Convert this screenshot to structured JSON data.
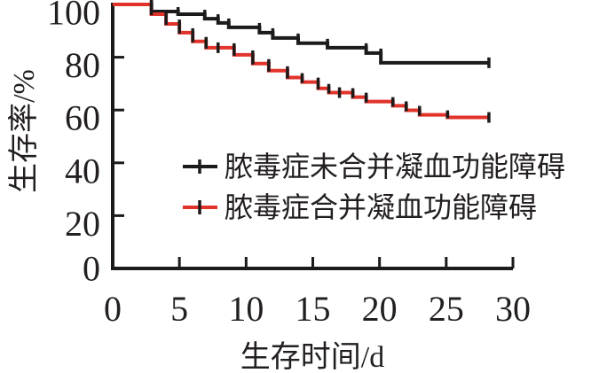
{
  "figure": {
    "background": "#ffffff",
    "text_color": "#231f20",
    "axis_color": "#1c1a1a"
  },
  "chart_data": {
    "type": "line",
    "subtype": "kaplan-meier-step-survival",
    "title": "",
    "xlabel": "生存时间/d",
    "ylabel": "生存率/%",
    "xlim": [
      0,
      30
    ],
    "ylim": [
      0,
      100
    ],
    "x_ticks": [
      0,
      5,
      10,
      15,
      20,
      25,
      30
    ],
    "y_ticks": [
      0,
      20,
      40,
      60,
      80,
      100
    ],
    "grid": false,
    "legend_position": "inside-center-left",
    "series": [
      {
        "name": "脓毒症未合并凝血功能障碍",
        "color": "#1c1a1a",
        "steps_day_pct": [
          [
            0,
            100
          ],
          [
            2.9,
            97.3
          ],
          [
            4.9,
            96.3
          ],
          [
            6.9,
            94.6
          ],
          [
            7.9,
            93.0
          ],
          [
            8.7,
            91.3
          ],
          [
            11.0,
            89.3
          ],
          [
            12.0,
            87.3
          ],
          [
            13.9,
            85.3
          ],
          [
            16.1,
            83.6
          ],
          [
            19.0,
            81.6
          ],
          [
            20.1,
            77.9
          ],
          [
            28.2,
            77.9
          ]
        ],
        "censor_days": [
          28.2
        ]
      },
      {
        "name": "脓毒症合并凝血功能障碍",
        "color": "#e2332b",
        "steps_day_pct": [
          [
            0,
            100
          ],
          [
            2.9,
            96.3
          ],
          [
            4.0,
            92.6
          ],
          [
            5.0,
            89.3
          ],
          [
            6.0,
            86.0
          ],
          [
            7.0,
            83.6
          ],
          [
            9.1,
            80.9
          ],
          [
            10.5,
            77.6
          ],
          [
            11.7,
            74.9
          ],
          [
            13.1,
            72.3
          ],
          [
            14.2,
            70.6
          ],
          [
            15.4,
            68.2
          ],
          [
            16.2,
            66.6
          ],
          [
            18.0,
            64.9
          ],
          [
            19.0,
            63.2
          ],
          [
            21.0,
            61.6
          ],
          [
            22.0,
            59.9
          ],
          [
            23.0,
            58.2
          ],
          [
            25.1,
            57.2
          ],
          [
            28.2,
            57.2
          ]
        ],
        "censor_days": [
          7.9,
          17.0,
          28.2
        ]
      }
    ]
  }
}
